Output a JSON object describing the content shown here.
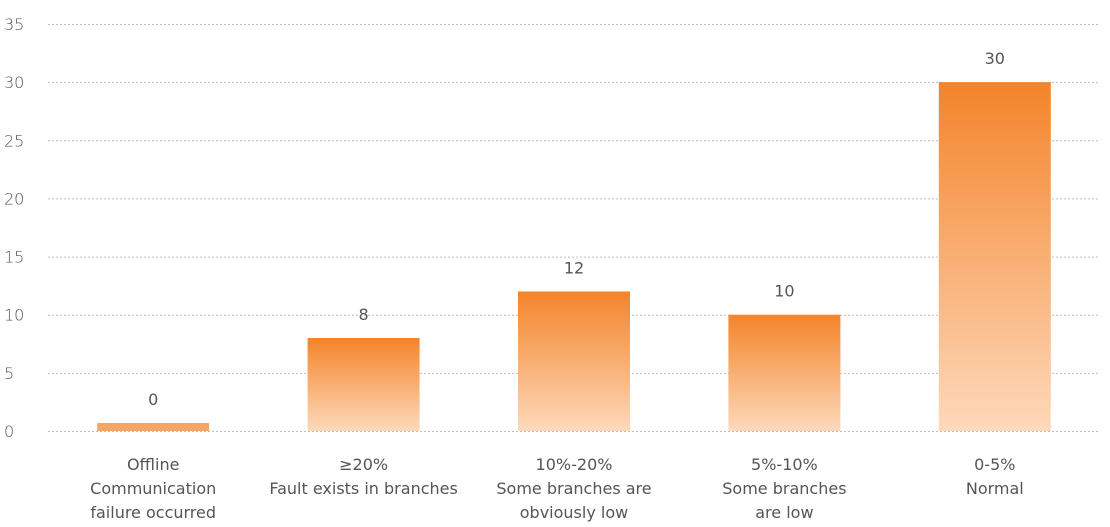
{
  "chart_data": {
    "type": "bar",
    "ylim": [
      0,
      35
    ],
    "yticks": [
      0,
      5,
      10,
      15,
      20,
      25,
      30,
      35
    ],
    "grid": true,
    "categories": [
      [
        "Offline",
        "Communication",
        "failure occurred"
      ],
      [
        "≥20%",
        "Fault exists in branches"
      ],
      [
        "10%-20%",
        "Some branches are",
        "obviously low"
      ],
      [
        "5%-10%",
        "Some branches",
        "are low"
      ],
      [
        "0-5%",
        "Normal"
      ]
    ],
    "values": [
      0,
      8,
      12,
      10,
      30
    ],
    "data_labels": [
      "0",
      "8",
      "12",
      "10",
      "30"
    ],
    "colors": {
      "bar_top": "#f4842a",
      "bar_bottom": "#fdd9bb",
      "zero_bar": "#f6a565"
    }
  }
}
